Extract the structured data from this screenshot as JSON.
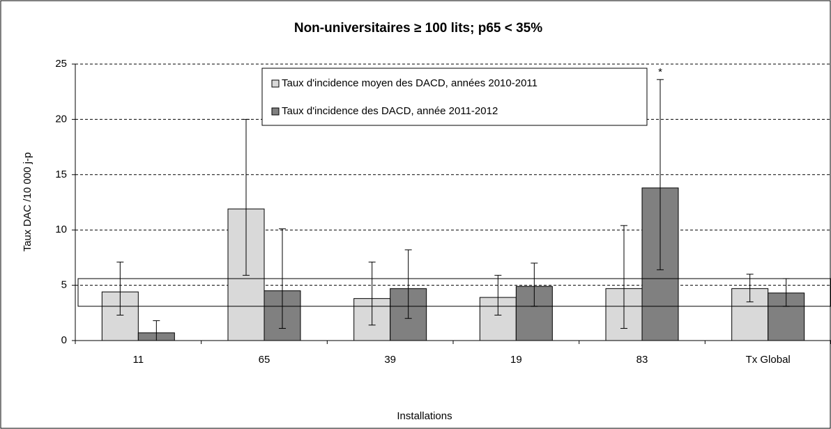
{
  "chart_data": {
    "type": "bar",
    "title": "Non-universitaires ≥ 100 lits; p65 < 35%",
    "y_label": "Taux DAC /10 000 j-p",
    "x_label": "Installations",
    "categories": [
      "11",
      "65",
      "39",
      "19",
      "83",
      "Tx Global"
    ],
    "series": [
      {
        "name": "Taux d'incidence moyen des DACD, années  2010-2011",
        "color": "#d9d9d9",
        "values": [
          4.4,
          11.9,
          3.8,
          3.9,
          4.7,
          4.7
        ],
        "lower": [
          2.3,
          5.9,
          1.4,
          2.3,
          1.1,
          3.5
        ],
        "upper": [
          7.1,
          20.0,
          7.1,
          5.9,
          10.4,
          6.0
        ]
      },
      {
        "name": "Taux d'incidence des DACD, année 2011-2012",
        "color": "#808080",
        "values": [
          0.7,
          4.5,
          4.7,
          4.9,
          13.8,
          4.3
        ],
        "lower": [
          0.0,
          1.1,
          2.0,
          3.1,
          6.4,
          3.1
        ],
        "upper": [
          1.8,
          10.1,
          8.2,
          7.0,
          23.6,
          5.6
        ]
      }
    ],
    "annotation": "*",
    "reference_band": [
      3.1,
      5.6
    ],
    "ylim": [
      0,
      25
    ],
    "yticks": [
      0,
      5,
      10,
      15,
      20,
      25
    ],
    "grid": true
  }
}
